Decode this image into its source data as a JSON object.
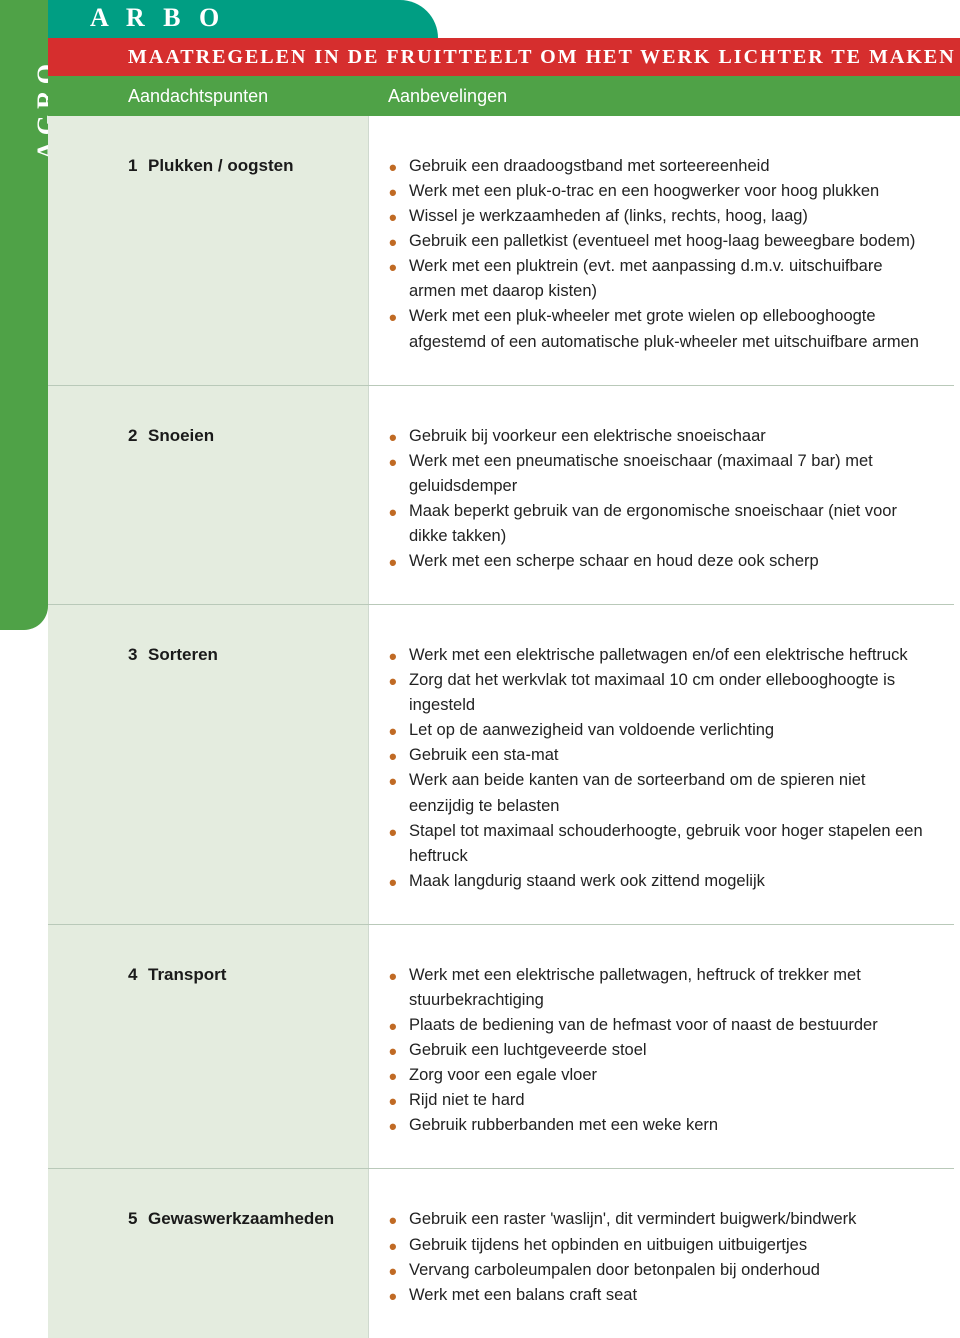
{
  "sidebar": {
    "agro": "AGRO",
    "amp": "&"
  },
  "tab": {
    "arbo": "A R B O"
  },
  "title": "MAATREGELEN IN DE FRUITTEELT OM HET WERK LICHTER TE MAKEN",
  "headers": {
    "left": "Aandachtspunten",
    "right": "Aanbevelingen"
  },
  "colors": {
    "green": "#4fa247",
    "teal": "#009e83",
    "red": "#d62e2e",
    "pale": "#e4ecdf",
    "bullet": "#c06a24"
  },
  "sections": [
    {
      "num": "1",
      "title": "Plukken / oogsten",
      "items": [
        "Gebruik een draadoogstband met sorteereenheid",
        "Werk met een pluk-o-trac en een hoogwerker voor hoog plukken",
        "Wissel je werkzaamheden af (links, rechts, hoog, laag)",
        "Gebruik een palletkist (eventueel met hoog-laag beweegbare bodem)",
        "Werk met een pluktrein (evt. met aanpassing d.m.v. uitschuifbare armen met daarop kisten)",
        "Werk met een pluk-wheeler met grote wielen op ellebooghoogte afgestemd of een automatische pluk-wheeler met uitschuifbare armen"
      ]
    },
    {
      "num": "2",
      "title": "Snoeien",
      "items": [
        "Gebruik bij voorkeur een elektrische snoeischaar",
        "Werk met een pneumatische snoeischaar (maximaal 7 bar) met geluidsdemper",
        "Maak beperkt gebruik van de ergonomische snoeischaar (niet voor dikke takken)",
        "Werk met een scherpe schaar en houd deze ook scherp"
      ]
    },
    {
      "num": "3",
      "title": "Sorteren",
      "items": [
        "Werk met een elektrische palletwagen en/of een elektrische heftruck",
        "Zorg dat het werkvlak tot maximaal 10 cm onder ellebooghoogte is ingesteld",
        "Let op de aanwezigheid van voldoende verlichting",
        "Gebruik een sta-mat",
        "Werk aan beide kanten van de sorteerband om de spieren niet eenzijdig te belasten",
        "Stapel tot maximaal schouderhoogte, gebruik voor hoger stapelen een heftruck",
        "Maak langdurig staand werk ook zittend mogelijk"
      ]
    },
    {
      "num": "4",
      "title": "Transport",
      "items": [
        "Werk met een elektrische palletwagen, heftruck of trekker met stuurbekrachtiging",
        "Plaats de bediening van de hefmast voor of naast de bestuurder",
        "Gebruik een luchtgeveerde stoel",
        "Zorg voor een egale vloer",
        "Rijd niet te hard",
        "Gebruik rubberbanden met een weke kern"
      ]
    },
    {
      "num": "5",
      "title": "Gewaswerkzaamheden",
      "items": [
        "Gebruik een raster 'waslijn', dit vermindert buigwerk/bindwerk",
        "Gebruik tijdens het opbinden en uitbuigen uitbuigertjes",
        "Vervang carboleumpalen door betonpalen bij onderhoud",
        "Werk met een balans craft seat"
      ]
    }
  ]
}
